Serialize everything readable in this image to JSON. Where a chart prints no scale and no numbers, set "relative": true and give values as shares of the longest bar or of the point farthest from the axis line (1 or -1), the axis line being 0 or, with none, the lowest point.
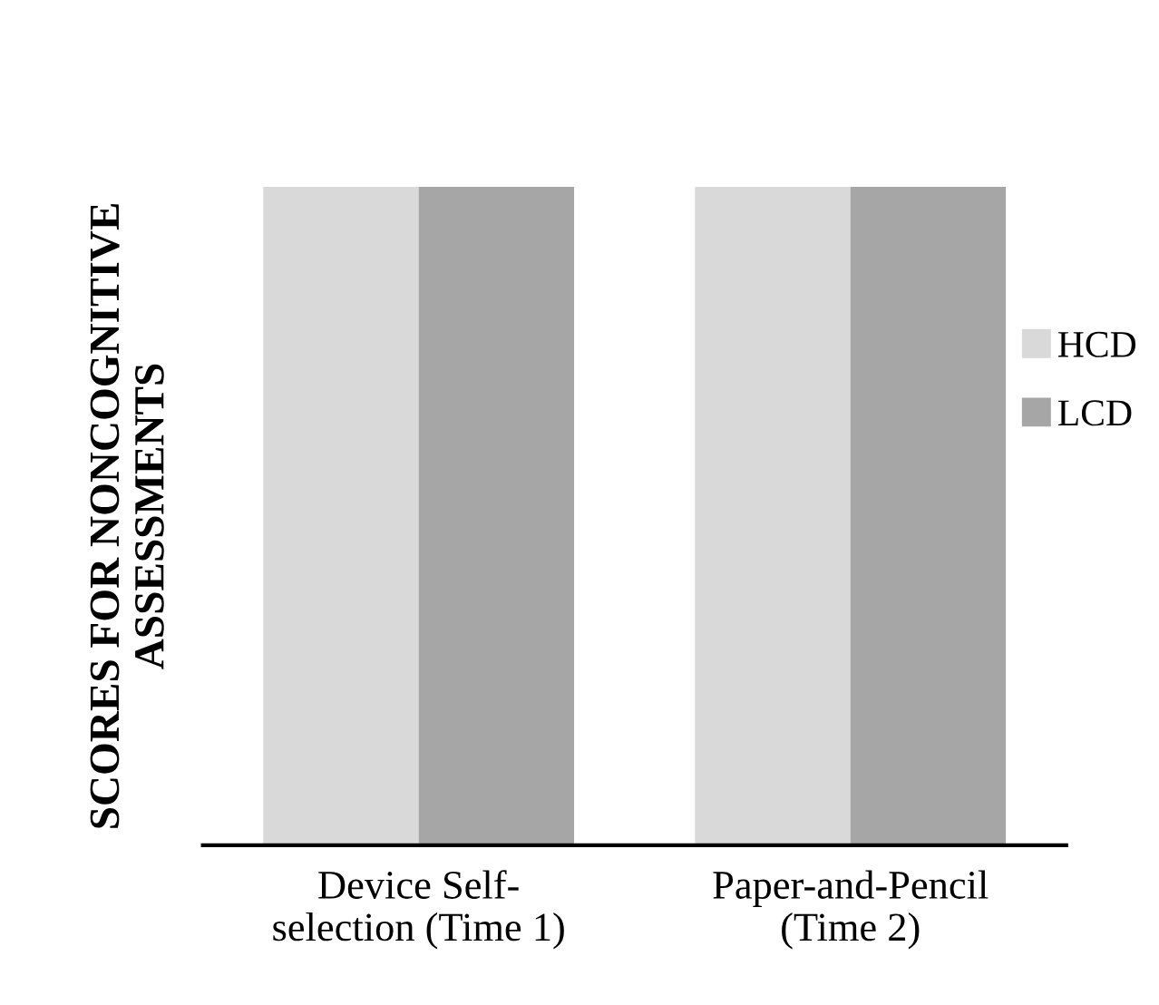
{
  "chart_data": {
    "type": "bar",
    "relative": true,
    "ylabel": "SCORES FOR NONCOGNITIVE\nASSESSMENTS",
    "categories": [
      "Device Self-\nselection (Time 1)",
      "Paper-and-Pencil\n(Time 2)"
    ],
    "series": [
      {
        "name": "HCD",
        "color": "#d9d9d9",
        "values": [
          1,
          1
        ]
      },
      {
        "name": "LCD",
        "color": "#a6a6a6",
        "values": [
          1,
          1
        ]
      }
    ],
    "legend": "right",
    "grid": false
  }
}
